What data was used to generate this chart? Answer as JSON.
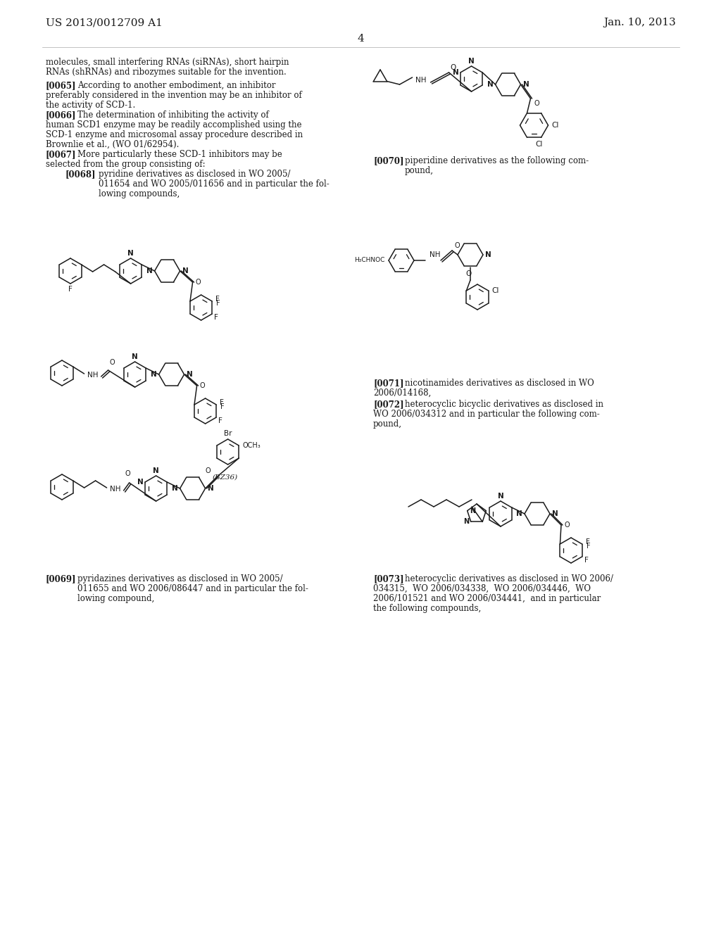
{
  "bg_color": "#ffffff",
  "text_color": "#1a1a1a",
  "header_left": "US 2013/0012709 A1",
  "header_right": "Jan. 10, 2013",
  "page_num": "4"
}
